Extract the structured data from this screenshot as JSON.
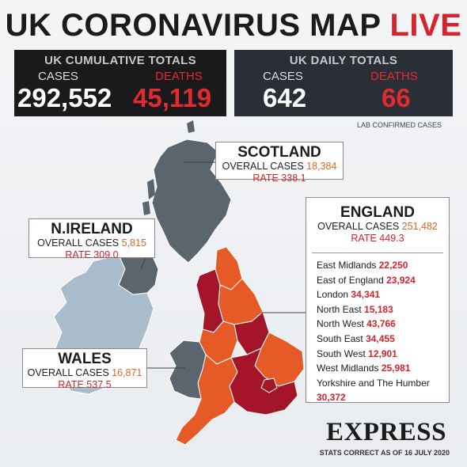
{
  "title": {
    "main": "UK CORONAVIRUS MAP",
    "live": "LIVE"
  },
  "cumulative": {
    "title": "UK CUMULATIVE TOTALS",
    "cases_label": "CASES",
    "deaths_label": "DEATHS",
    "cases": "292,552",
    "deaths": "45,119"
  },
  "daily": {
    "title": "UK DAILY TOTALS",
    "cases_label": "CASES",
    "deaths_label": "DEATHS",
    "cases": "642",
    "deaths": "66"
  },
  "lab_note": "LAB CONFIRMED CASES",
  "scotland": {
    "name": "SCOTLAND",
    "overall_label": "OVERALL CASES",
    "overall": "18,384",
    "rate": "RATE 338.1"
  },
  "n_ireland": {
    "name": "N.IRELAND",
    "overall_label": "OVERALL CASES",
    "overall": "5,815",
    "rate": "RATE 309.0"
  },
  "wales": {
    "name": "WALES",
    "overall_label": "OVERALL CASES",
    "overall": "16,871",
    "rate": "RATE 537.5"
  },
  "england": {
    "name": "ENGLAND",
    "overall_label": "OVERALL CASES",
    "overall": "251,482",
    "rate": "RATE 449.3",
    "regions": [
      {
        "name": "East Midlands",
        "value": "22,250"
      },
      {
        "name": "East of England",
        "value": "23,924"
      },
      {
        "name": "London",
        "value": "34,341"
      },
      {
        "name": "North East",
        "value": "15,183"
      },
      {
        "name": "North West",
        "value": "43,766"
      },
      {
        "name": "South East",
        "value": "34,455"
      },
      {
        "name": "South West",
        "value": "12,901"
      },
      {
        "name": "West Midlands",
        "value": "25,981"
      },
      {
        "name": "Yorkshire and The Humber",
        "value": ""
      },
      {
        "name": "",
        "value": "30,372"
      }
    ]
  },
  "brand": "EXPRESS",
  "stats_note": "STATS CORRECT AS OF 16 JULY 2020",
  "colors": {
    "live_red": "#d8232a",
    "scotland_grey": "#5b656e",
    "ireland_light": "#a9bccb",
    "england_orange": "#e55a26",
    "england_dark_red": "#a5152a",
    "wales_grey": "#5b656e"
  }
}
